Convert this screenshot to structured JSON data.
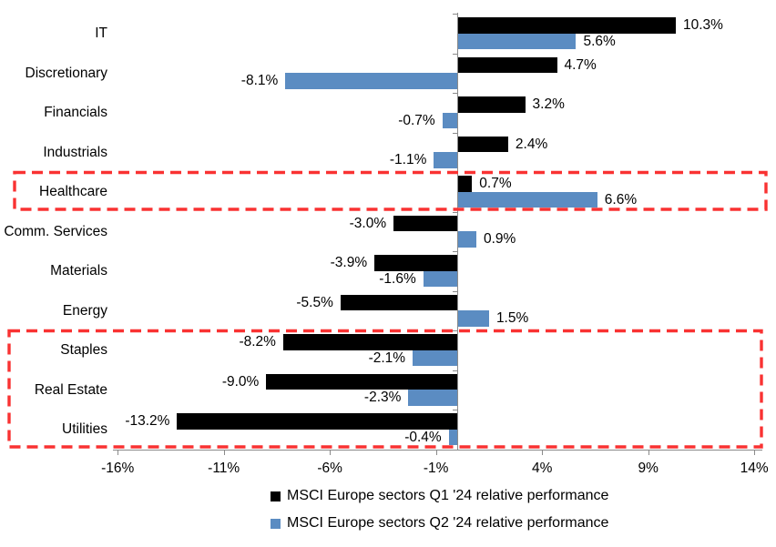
{
  "chart_data": {
    "type": "bar",
    "orientation": "horizontal",
    "categories": [
      "IT",
      "Discretionary",
      "Financials",
      "Industrials",
      "Healthcare",
      "Comm. Services",
      "Materials",
      "Energy",
      "Staples",
      "Real Estate",
      "Utilities"
    ],
    "series": [
      {
        "name": "MSCI Europe sectors Q1 '24 relative performance",
        "color": "#000000",
        "values": [
          10.3,
          4.7,
          3.2,
          2.4,
          0.7,
          -3.0,
          -3.9,
          -5.5,
          -8.2,
          -9.0,
          -13.2
        ]
      },
      {
        "name": "MSCI Europe sectors Q2 '24 relative performance",
        "color": "#5b8cc2",
        "values": [
          5.6,
          -8.1,
          -0.7,
          -1.1,
          6.6,
          0.9,
          -1.6,
          1.5,
          -2.1,
          -2.3,
          -0.4
        ]
      }
    ],
    "data_label_suffix": "%",
    "x_ticks": [
      "-16%",
      "-11%",
      "-6%",
      "-1%",
      "4%",
      "9%",
      "14%"
    ],
    "x_tick_values": [
      -16,
      -11,
      -6,
      -1,
      4,
      9,
      14
    ],
    "xlim": [
      -16,
      14
    ],
    "grid": "off",
    "legend_position": "bottom",
    "axis_color": "#8a8a8a",
    "highlight_color": "#f93232",
    "highlights": [
      {
        "rows": [
          "Healthcare"
        ]
      },
      {
        "rows": [
          "Staples",
          "Real Estate",
          "Utilities"
        ]
      }
    ]
  }
}
